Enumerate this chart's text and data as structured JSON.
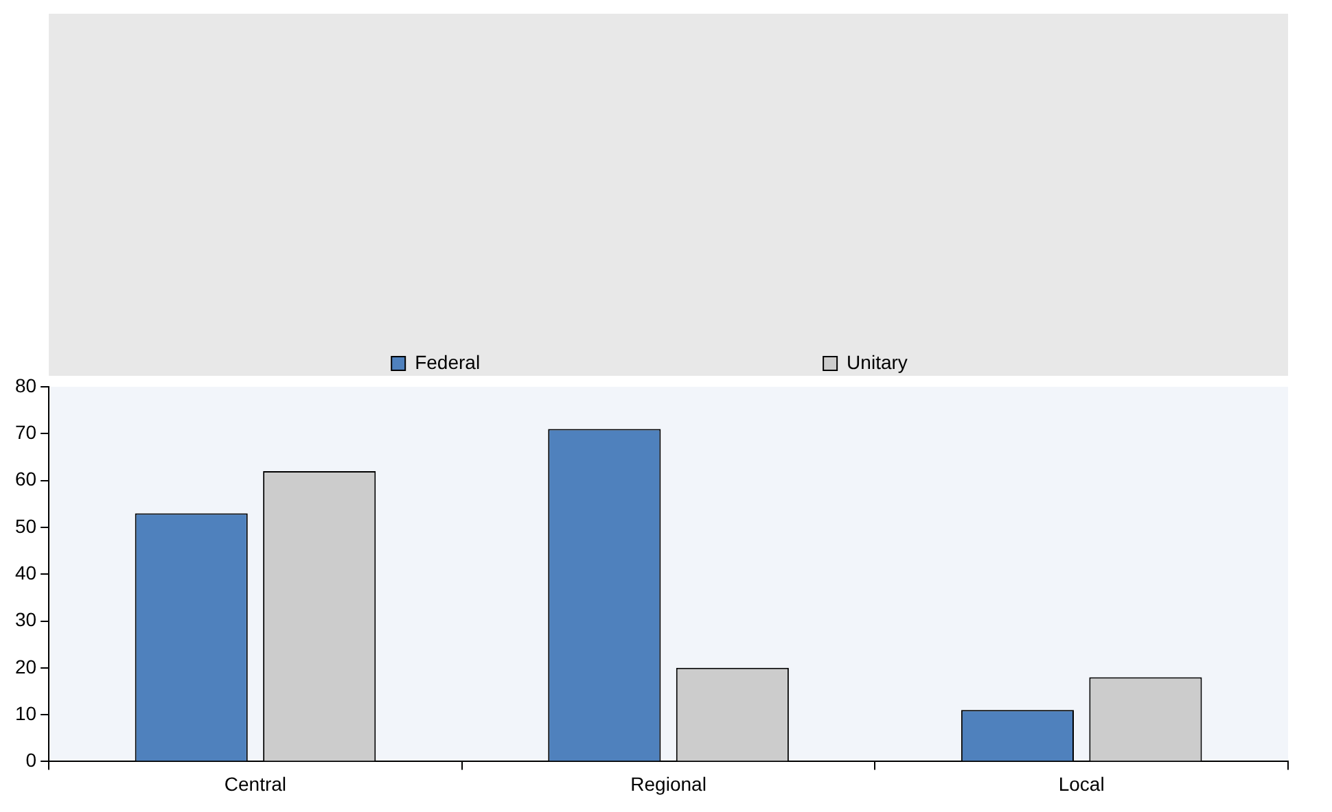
{
  "chart_data": {
    "type": "bar",
    "categories": [
      "Central",
      "Regional",
      "Local"
    ],
    "series": [
      {
        "name": "Federal",
        "color": "#4f81bd",
        "values": [
          53,
          71,
          11
        ]
      },
      {
        "name": "Unitary",
        "color": "#cccccc",
        "values": [
          62,
          20,
          18
        ]
      }
    ],
    "ylim": [
      0,
      80
    ],
    "yticks": [
      0,
      10,
      20,
      30,
      40,
      50,
      60,
      70,
      80
    ],
    "grid": false,
    "legend": "top"
  }
}
